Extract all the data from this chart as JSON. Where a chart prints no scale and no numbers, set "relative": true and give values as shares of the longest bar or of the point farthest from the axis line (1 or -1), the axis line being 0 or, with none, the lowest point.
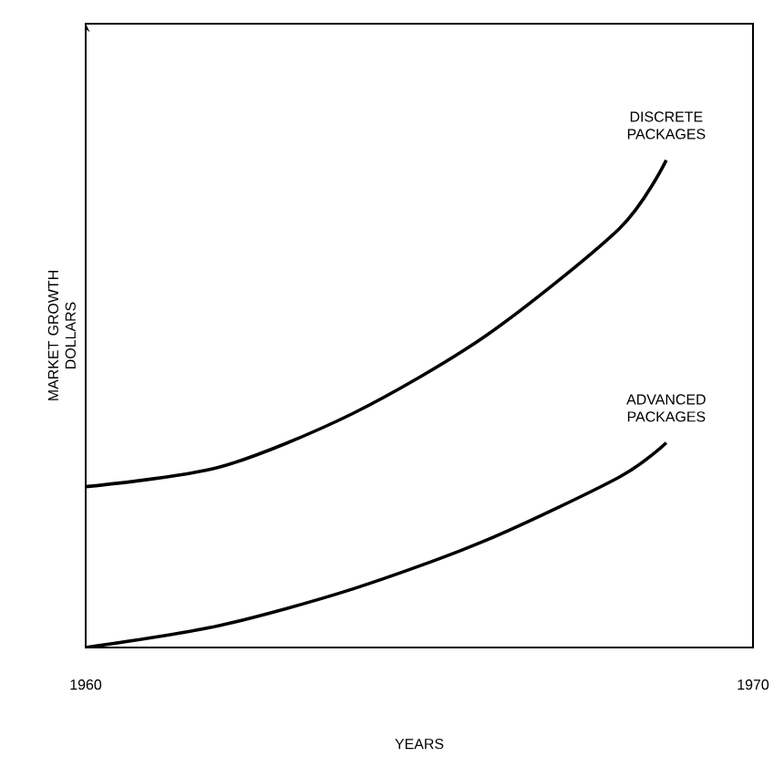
{
  "chart_data": {
    "type": "line",
    "relative": true,
    "xlabel": "YEARS",
    "ylabel": "MARKET GROWTH DOLLARS",
    "xlim": [
      1960,
      1970
    ],
    "xticks": [
      1960,
      1970
    ],
    "series": [
      {
        "name": "DISCRETE PACKAGES",
        "color": "#000000",
        "x": [
          1960,
          1962,
          1964,
          1966,
          1968,
          1968.7
        ],
        "values": [
          0.33,
          0.37,
          0.48,
          0.64,
          0.86,
          1
        ]
      },
      {
        "name": "ADVANCED PACKAGES",
        "color": "#000000",
        "x": [
          1960,
          1962,
          1964,
          1966,
          1968,
          1968.7
        ],
        "values": [
          0,
          0.045,
          0.12,
          0.22,
          0.35,
          0.42
        ]
      }
    ]
  }
}
